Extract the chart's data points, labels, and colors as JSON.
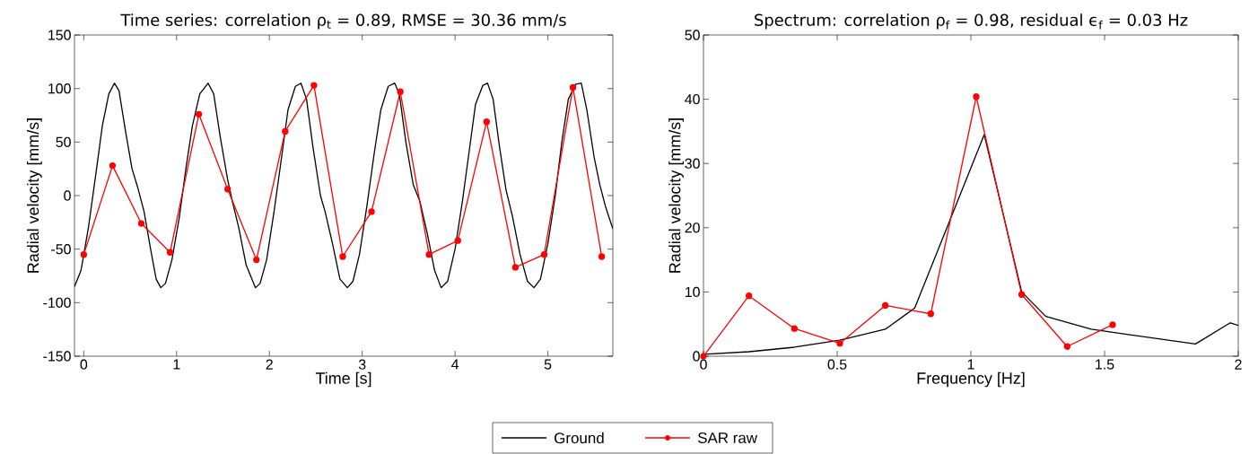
{
  "chart_data": [
    {
      "type": "line",
      "title": "Time series: correlation ρ$_{t}$ = 0.89, RMSE = 30.36 mm/s",
      "xlabel": "Time [s]",
      "ylabel": "Radial velocity [mm/s]",
      "xlim": [
        -0.1,
        5.7
      ],
      "ylim": [
        -150,
        150
      ],
      "xticks": [
        0,
        1,
        2,
        3,
        4,
        5
      ],
      "yticks": [
        -150,
        -100,
        -50,
        0,
        50,
        100,
        150
      ],
      "legend": "bottom",
      "series": [
        {
          "name": "Ground",
          "color": "#000000",
          "marker": "none",
          "x": [
            -0.1,
            -0.03,
            0.05,
            0.13,
            0.2,
            0.27,
            0.33,
            0.38,
            0.45,
            0.52,
            0.58,
            0.65,
            0.72,
            0.78,
            0.83,
            0.88,
            0.95,
            1.03,
            1.1,
            1.17,
            1.25,
            1.34,
            1.4,
            1.47,
            1.55,
            1.6,
            1.67,
            1.75,
            1.85,
            1.9,
            1.97,
            2.05,
            2.13,
            2.2,
            2.28,
            2.34,
            2.4,
            2.47,
            2.55,
            2.6,
            2.68,
            2.76,
            2.84,
            2.9,
            2.97,
            3.05,
            3.13,
            3.2,
            3.28,
            3.35,
            3.4,
            3.47,
            3.55,
            3.62,
            3.7,
            3.78,
            3.85,
            3.92,
            4.0,
            4.08,
            4.15,
            4.22,
            4.3,
            4.35,
            4.41,
            4.48,
            4.55,
            4.62,
            4.7,
            4.78,
            4.85,
            4.92,
            5.0,
            5.08,
            5.15,
            5.22,
            5.3,
            5.36,
            5.42,
            5.5,
            5.56,
            5.62,
            5.7
          ],
          "values": [
            -85,
            -70,
            -30,
            20,
            65,
            95,
            105,
            98,
            60,
            25,
            8,
            -15,
            -50,
            -78,
            -86,
            -82,
            -60,
            -20,
            25,
            65,
            95,
            105,
            95,
            55,
            15,
            -5,
            -30,
            -65,
            -86,
            -82,
            -60,
            -15,
            35,
            80,
            102,
            105,
            90,
            45,
            0,
            -15,
            -45,
            -78,
            -86,
            -80,
            -55,
            -10,
            40,
            80,
            102,
            105,
            95,
            50,
            10,
            -5,
            -35,
            -70,
            -86,
            -80,
            -50,
            -5,
            40,
            85,
            103,
            105,
            90,
            45,
            5,
            -20,
            -55,
            -80,
            -86,
            -78,
            -45,
            0,
            50,
            90,
            104,
            105,
            80,
            35,
            10,
            -10,
            -31
          ]
        },
        {
          "name": "SAR raw",
          "color": "#ff0000",
          "marker": "circle",
          "x": [
            0,
            0.31,
            0.62,
            0.93,
            1.24,
            1.55,
            1.86,
            2.17,
            2.48,
            2.79,
            3.1,
            3.41,
            3.72,
            4.03,
            4.34,
            4.65,
            4.96,
            5.27,
            5.58
          ],
          "values": [
            -55,
            28,
            -26,
            -53,
            76,
            6,
            -60,
            60,
            103,
            -57,
            -15,
            97,
            -55,
            -42,
            69,
            -67,
            -55,
            101,
            -57
          ]
        }
      ]
    },
    {
      "type": "line",
      "title": "Spectrum: correlation ρ$_{f}$ = 0.98, residual ϵ$_{f}$ = 0.03 Hz",
      "xlabel": "Frequency [Hz]",
      "ylabel": "Radial velocity [mm/s]",
      "xlim": [
        0,
        2
      ],
      "ylim": [
        0,
        50
      ],
      "xticks": [
        0,
        0.5,
        1,
        1.5,
        2
      ],
      "yticks": [
        0,
        10,
        20,
        30,
        40,
        50
      ],
      "series": [
        {
          "color": "#000000",
          "marker": "none",
          "x": [
            0,
            0.17,
            0.34,
            0.51,
            0.68,
            0.79,
            1.05,
            1.19,
            1.28,
            1.45,
            1.6,
            1.84,
            1.97,
            2.0
          ],
          "values": [
            0.3,
            0.7,
            1.4,
            2.5,
            4.2,
            7.5,
            34.5,
            10,
            6.2,
            4.2,
            3.3,
            1.9,
            5.2,
            4.8
          ]
        },
        {
          "color": "#ff0000",
          "marker": "circle",
          "x": [
            0,
            0.17,
            0.34,
            0.51,
            0.68,
            0.85,
            1.02,
            1.19,
            1.36,
            1.53
          ],
          "values": [
            0,
            9.4,
            4.3,
            2.0,
            7.9,
            6.6,
            40.4,
            9.6,
            1.5,
            4.9
          ]
        }
      ]
    }
  ]
}
